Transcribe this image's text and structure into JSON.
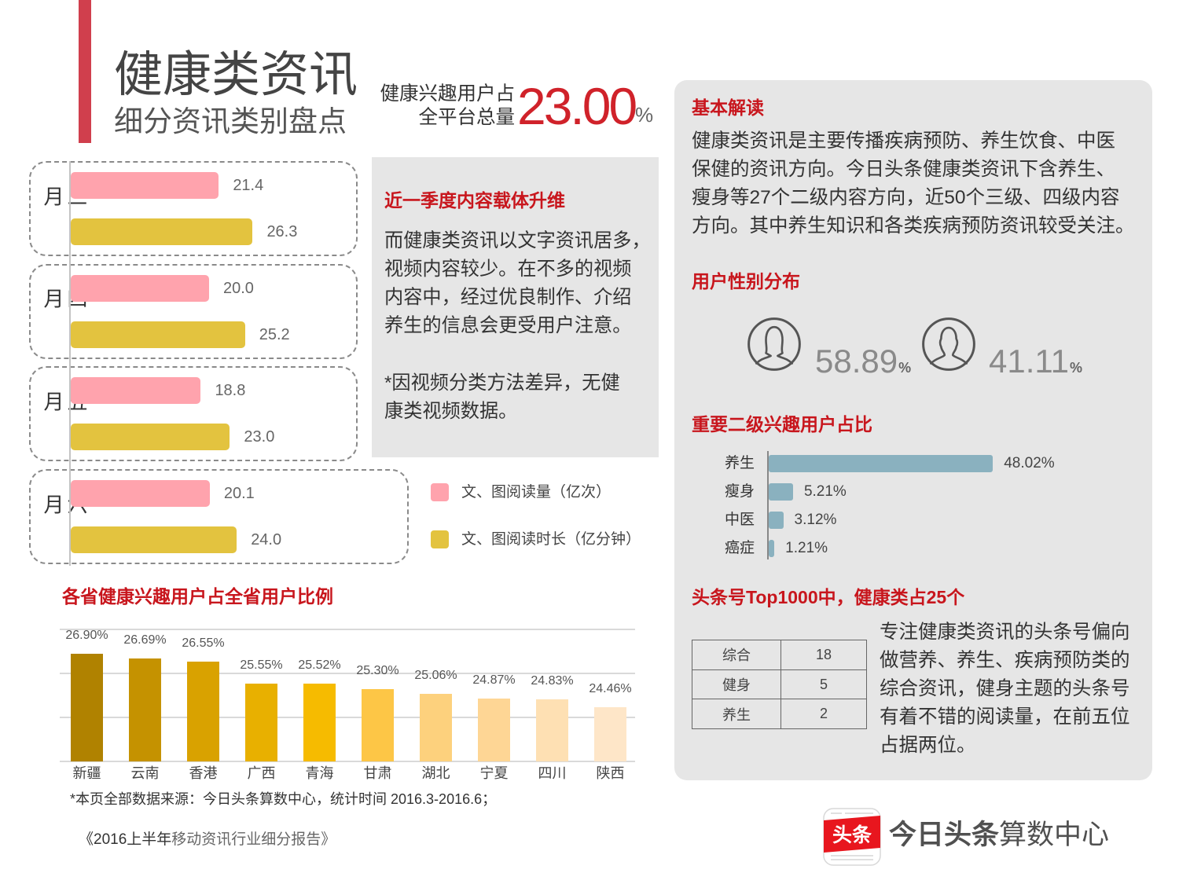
{
  "header": {
    "title": "健康类资讯",
    "subtitle": "细分资讯类别盘点",
    "stat_label_line1": "健康兴趣用户占",
    "stat_label_line2": "全平台总量",
    "stat_value": "23.00",
    "stat_unit": "%"
  },
  "colors": {
    "accent_red": "#c8161d",
    "title_bar_red": "#d03f4d",
    "stat_red": "#d0222a",
    "panel_gray": "#e6e6e6",
    "pink": "#ffa3ad",
    "gold": "#e3c33f",
    "interest_bar": "#8ab1bf"
  },
  "content_panel": {
    "heading": "近一季度内容载体升维",
    "body_lines": [
      "而健康类资讯以文字资讯居多，",
      "视频内容较少。在不多的视频",
      "内容中，经过优良制作、介绍",
      "养生的信息会更受用户注意。"
    ],
    "note_lines": [
      "*因视频分类方法差异，无健",
      "康类视频数据。"
    ]
  },
  "province_section": {
    "heading": "各省健康兴趣用户占全省用户比例"
  },
  "footnote": "*本页全部数据来源：今日头条算数中心，统计时间 2016.3-2016.6；",
  "report_title": {
    "part1": "《2016上半年",
    "part2": "移动资讯行业细分报告》"
  },
  "right_panel": {
    "basic": {
      "heading": "基本解读",
      "lines": [
        "健康类资讯是主要传播疾病预防、养生饮食、中医",
        "保健的资讯方向。今日头条健康类资讯下含养生、",
        "瘦身等27个二级内容方向，近50个三级、四级内容",
        "方向。其中养生知识和各类疾病预防资讯较受关注。"
      ]
    },
    "gender": {
      "heading": "用户性别分布",
      "female": {
        "icon": "female-user-icon",
        "value": "58.89",
        "unit": "%"
      },
      "male": {
        "icon": "male-user-icon",
        "value": "41.11",
        "unit": "%"
      }
    },
    "interest": {
      "heading": "重要二级兴趣用户占比"
    },
    "top1000": {
      "heading": "头条号Top1000中，健康类占25个",
      "table": [
        {
          "category": "综合",
          "count": "18"
        },
        {
          "category": "健身",
          "count": "5"
        },
        {
          "category": "养生",
          "count": "2"
        }
      ],
      "lines": [
        "专注健康类资讯的头条号偏向",
        "做营养、养生、疾病预防类的",
        "综合资讯，健身主题的头条号",
        "有着不错的阅读量，在前五位",
        "占据两位。"
      ]
    }
  },
  "logo": {
    "badge": "头条",
    "brand_bold": "今日头条",
    "brand_light": "算数中心"
  },
  "chart_data": [
    {
      "type": "bar",
      "orientation": "horizontal",
      "title": "",
      "categories": [
        "三月",
        "四月",
        "五月",
        "六月"
      ],
      "series": [
        {
          "name": "文、图阅读量（亿次）",
          "color": "#ffa3ad",
          "values": [
            21.4,
            20.0,
            18.8,
            20.1
          ],
          "labels": [
            "21.4",
            "20.0",
            "18.8",
            "20.1"
          ]
        },
        {
          "name": "文、图阅读时长（亿分钟）",
          "color": "#e3c33f",
          "values": [
            26.3,
            25.2,
            23.0,
            24.0
          ],
          "labels": [
            "26.3",
            "25.2",
            "23.0",
            "24.0"
          ]
        }
      ],
      "xlim": [
        0,
        30
      ],
      "legend": "right"
    },
    {
      "type": "bar",
      "title": "各省健康兴趣用户占全省用户比例",
      "categories": [
        "新疆",
        "云南",
        "香港",
        "广西",
        "青海",
        "甘肃",
        "湖北",
        "宁夏",
        "四川",
        "陕西"
      ],
      "values": [
        26.9,
        26.69,
        26.55,
        25.55,
        25.52,
        25.3,
        25.06,
        24.87,
        24.83,
        24.46
      ],
      "labels": [
        "26.90%",
        "26.69%",
        "26.55%",
        "25.55%",
        "25.52%",
        "25.30%",
        "25.06%",
        "24.87%",
        "24.83%",
        "24.46%"
      ],
      "bar_colors": [
        "#b08200",
        "#c59200",
        "#d9a200",
        "#e8b000",
        "#f6bb00",
        "#fdc646",
        "#fdd17d",
        "#fed695",
        "#fee0b3",
        "#fee6c8"
      ],
      "xlabel": "",
      "ylabel": "",
      "ylim": [
        22,
        28
      ],
      "grid": true
    },
    {
      "type": "bar",
      "orientation": "horizontal",
      "title": "重要二级兴趣用户占比",
      "categories": [
        "养生",
        "瘦身",
        "中医",
        "癌症"
      ],
      "values": [
        48.02,
        5.21,
        3.12,
        1.21
      ],
      "labels": [
        "48.02%",
        "5.21%",
        "3.12%",
        "1.21%"
      ],
      "color": "#8ab1bf",
      "xlim": [
        0,
        50
      ]
    }
  ]
}
